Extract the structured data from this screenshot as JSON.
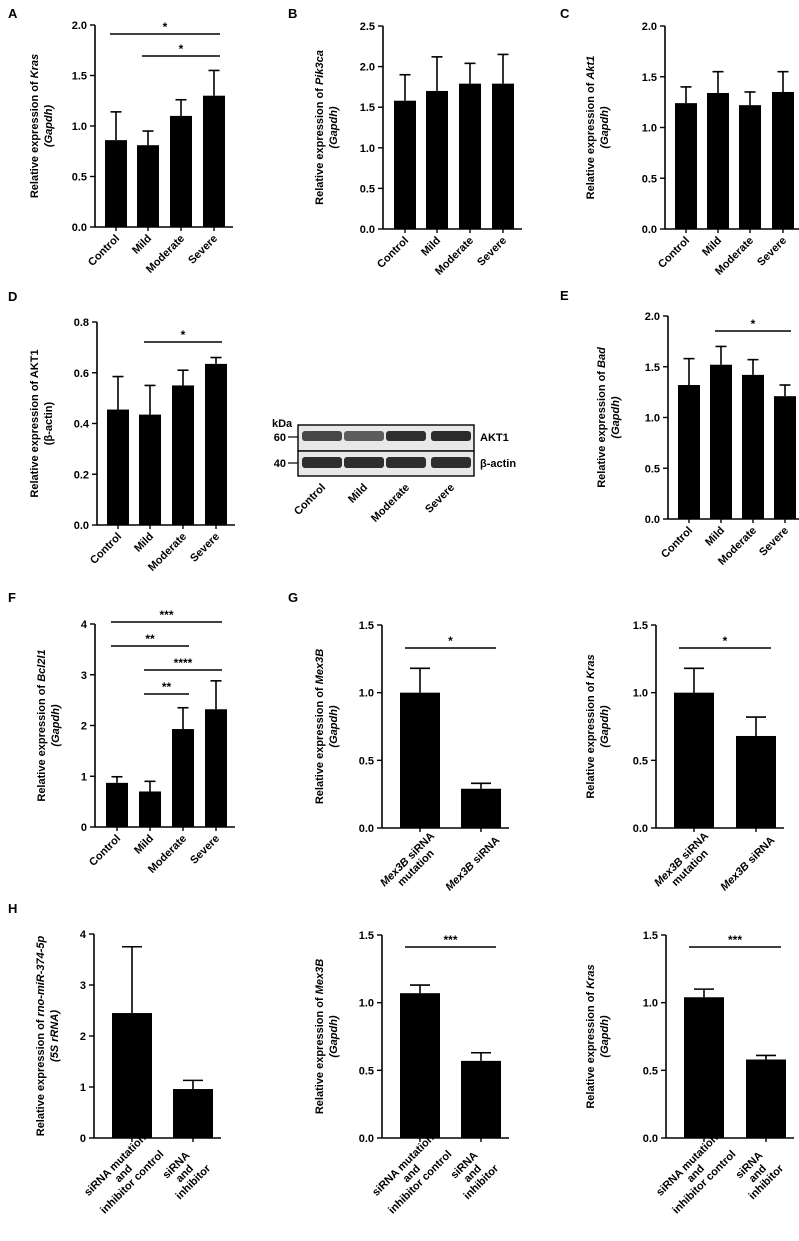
{
  "chart_data": [
    {
      "id": "A",
      "panel": "A",
      "type": "bar",
      "categories": [
        "Control",
        "Mild",
        "Moderate",
        "Severe"
      ],
      "values": [
        0.86,
        0.81,
        1.1,
        1.3
      ],
      "errors": [
        0.28,
        0.14,
        0.16,
        0.25
      ],
      "ylim": [
        0,
        2.0
      ],
      "yticks": [
        "0.0",
        "0.5",
        "1.0",
        "1.5",
        "2.0"
      ],
      "ylabel_parts": [
        "Relative expression of ",
        "Kras"
      ],
      "ylabel_line2": "(Gapdh)",
      "significance": [
        {
          "from": 0,
          "to": 3,
          "label": "*"
        },
        {
          "from": 1,
          "to": 3,
          "label": "*"
        }
      ]
    },
    {
      "id": "B",
      "panel": "B",
      "type": "bar",
      "categories": [
        "Control",
        "Mild",
        "Moderate",
        "Severe"
      ],
      "values": [
        1.58,
        1.7,
        1.79,
        1.79
      ],
      "errors": [
        0.32,
        0.42,
        0.25,
        0.36
      ],
      "ylim": [
        0,
        2.5
      ],
      "yticks": [
        "0.0",
        "0.5",
        "1.0",
        "1.5",
        "2.0",
        "2.5"
      ],
      "ylabel_parts": [
        "Relative expression of ",
        "Pik3ca"
      ],
      "ylabel_line2": "(Gapdh)",
      "significance": []
    },
    {
      "id": "C",
      "panel": "C",
      "type": "bar",
      "categories": [
        "Control",
        "Mild",
        "Moderate",
        "Severe"
      ],
      "values": [
        1.24,
        1.34,
        1.22,
        1.35
      ],
      "errors": [
        0.16,
        0.21,
        0.13,
        0.2
      ],
      "ylim": [
        0,
        2.0
      ],
      "yticks": [
        "0.0",
        "0.5",
        "1.0",
        "1.5",
        "2.0"
      ],
      "ylabel_parts": [
        "Relative expression of ",
        "Akt1"
      ],
      "ylabel_line2": "(Gapdh)",
      "significance": []
    },
    {
      "id": "D",
      "panel": "D",
      "type": "bar",
      "categories": [
        "Control",
        "Mild",
        "Moderate",
        "Severe"
      ],
      "values": [
        0.455,
        0.435,
        0.55,
        0.635
      ],
      "errors": [
        0.13,
        0.115,
        0.06,
        0.025
      ],
      "ylim": [
        0,
        0.8
      ],
      "yticks": [
        "0.0",
        "0.2",
        "0.4",
        "0.6",
        "0.8"
      ],
      "ylabel_parts": [
        "Relative expression of AKT1"
      ],
      "ylabel_line2": "(β-actin)",
      "significance": [
        {
          "from": 1,
          "to": 3,
          "label": "*"
        }
      ]
    },
    {
      "id": "E",
      "panel": "E",
      "type": "bar",
      "categories": [
        "Control",
        "Mild",
        "Moderate",
        "Severe"
      ],
      "values": [
        1.32,
        1.52,
        1.42,
        1.21
      ],
      "errors": [
        0.26,
        0.18,
        0.15,
        0.11
      ],
      "ylim": [
        0,
        2.0
      ],
      "yticks": [
        "0.0",
        "0.5",
        "1.0",
        "1.5",
        "2.0"
      ],
      "ylabel_parts": [
        "Relative expression of ",
        "Bad"
      ],
      "ylabel_line2": "(Gapdh)",
      "significance": [
        {
          "from": 1,
          "to": 3,
          "label": "*"
        }
      ]
    },
    {
      "id": "F",
      "panel": "F",
      "type": "bar",
      "categories": [
        "Control",
        "Mild",
        "Moderate",
        "Severe"
      ],
      "values": [
        0.87,
        0.7,
        1.93,
        2.32
      ],
      "errors": [
        0.12,
        0.2,
        0.42,
        0.56
      ],
      "ylim": [
        0,
        4
      ],
      "yticks": [
        "0",
        "1",
        "2",
        "3",
        "4"
      ],
      "ylabel_parts": [
        "Relative expression of ",
        "Bcl2l1"
      ],
      "ylabel_line2": "(Gapdh)",
      "significance": [
        {
          "from": 0,
          "to": 3,
          "label": "***"
        },
        {
          "from": 0,
          "to": 2,
          "label": "**"
        },
        {
          "from": 1,
          "to": 3,
          "label": "****"
        },
        {
          "from": 1,
          "to": 2,
          "label": "**"
        }
      ]
    },
    {
      "id": "G1",
      "panel": "G",
      "type": "bar",
      "categories": [
        [
          "Mex3B siRNA",
          "mutation"
        ],
        [
          "Mex3B siRNA"
        ]
      ],
      "values": [
        1.0,
        0.29
      ],
      "errors": [
        0.18,
        0.04
      ],
      "ylim": [
        0,
        1.5
      ],
      "yticks": [
        "0.0",
        "0.5",
        "1.0",
        "1.5"
      ],
      "ylabel_parts": [
        "Relative expression of ",
        "Mex3B"
      ],
      "ylabel_line2": "(Gapdh)",
      "significance": [
        {
          "from": 0,
          "to": 1,
          "label": "*"
        }
      ]
    },
    {
      "id": "G2",
      "panel": "",
      "type": "bar",
      "categories": [
        [
          "Mex3B siRNA",
          "mutation"
        ],
        [
          "Mex3B siRNA"
        ]
      ],
      "values": [
        1.0,
        0.68
      ],
      "errors": [
        0.18,
        0.14
      ],
      "ylim": [
        0,
        1.5
      ],
      "yticks": [
        "0.0",
        "0.5",
        "1.0",
        "1.5"
      ],
      "ylabel_parts": [
        "Relative expression of ",
        "Kras"
      ],
      "ylabel_line2": "(Gapdh)",
      "significance": [
        {
          "from": 0,
          "to": 1,
          "label": "*"
        }
      ]
    },
    {
      "id": "H1",
      "panel": "H",
      "type": "bar",
      "categories": [
        [
          "siRNA mutation",
          "and",
          "inhibitor control"
        ],
        [
          "siRNA",
          "and",
          "inhibitor"
        ]
      ],
      "values": [
        2.45,
        0.96
      ],
      "errors": [
        1.3,
        0.17
      ],
      "ylim": [
        0,
        4
      ],
      "yticks": [
        "0",
        "1",
        "2",
        "3",
        "4"
      ],
      "ylabel_parts": [
        "Relative expression of ",
        "rno-miR-374-5p"
      ],
      "ylabel_line2": "(5S rRNA)",
      "significance": []
    },
    {
      "id": "H2",
      "panel": "",
      "type": "bar",
      "categories": [
        [
          "siRNA mutation",
          "and",
          "inhibitor control"
        ],
        [
          "siRNA",
          "and",
          "inhibitor"
        ]
      ],
      "values": [
        1.07,
        0.57
      ],
      "errors": [
        0.06,
        0.06
      ],
      "ylim": [
        0,
        1.5
      ],
      "yticks": [
        "0.0",
        "0.5",
        "1.0",
        "1.5"
      ],
      "ylabel_parts": [
        "Relative expression of ",
        "Mex3B"
      ],
      "ylabel_line2": "(Gapdh)",
      "significance": [
        {
          "from": 0,
          "to": 1,
          "label": "***"
        }
      ]
    },
    {
      "id": "H3",
      "panel": "",
      "type": "bar",
      "categories": [
        [
          "siRNA mutation",
          "and",
          "inhibitor control"
        ],
        [
          "siRNA",
          "and",
          "inhibitor"
        ]
      ],
      "values": [
        1.04,
        0.58
      ],
      "errors": [
        0.06,
        0.03
      ],
      "ylim": [
        0,
        1.5
      ],
      "yticks": [
        "0.0",
        "0.5",
        "1.0",
        "1.5"
      ],
      "ylabel_parts": [
        "Relative expression of ",
        "Kras"
      ],
      "ylabel_line2": "(Gapdh)",
      "significance": [
        {
          "from": 0,
          "to": 1,
          "label": "***"
        }
      ]
    }
  ],
  "western_blot": {
    "kda_label": "kDa",
    "bands": [
      {
        "marker": "60",
        "protein": "AKT1"
      },
      {
        "marker": "40",
        "protein": "β-actin"
      }
    ],
    "lanes": [
      "Control",
      "Mild",
      "Moderate",
      "Severe"
    ]
  }
}
